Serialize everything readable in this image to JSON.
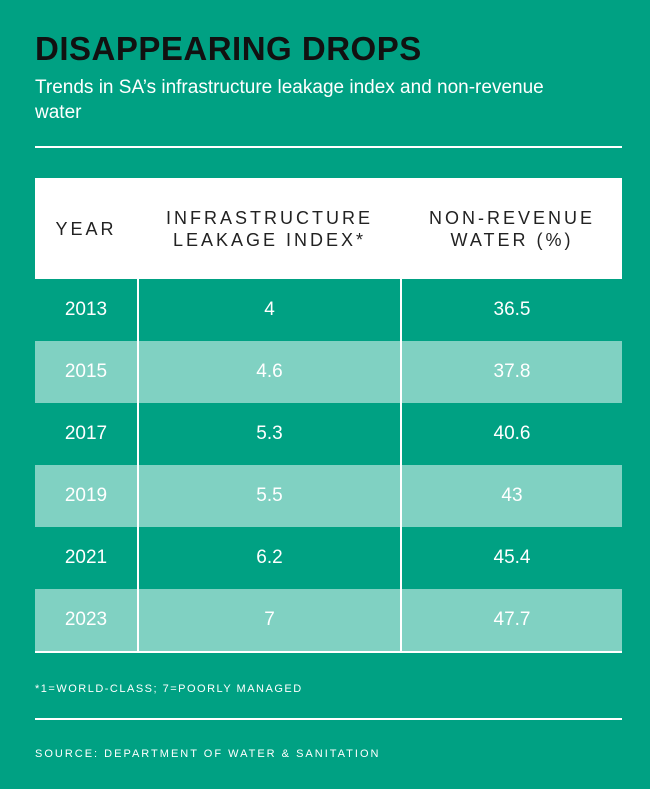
{
  "title": "DISAPPEARING DROPS",
  "subtitle": "Trends in SA’s infrastructure leakage index and non-revenue water",
  "footnote": "*1=WORLD-CLASS; 7=POORLY MANAGED",
  "source": "SOURCE: DEPARTMENT OF WATER & SANITATION",
  "colors": {
    "background": "#00a183",
    "alt_row": "#80d1c2",
    "title": "#111111"
  },
  "chart_data": {
    "type": "table",
    "columns": [
      "YEAR",
      "INFRASTRUCTURE LEAKAGE INDEX*",
      "NON-REVENUE WATER (%)"
    ],
    "rows": [
      [
        "2013",
        "4",
        "36.5"
      ],
      [
        "2015",
        "4.6",
        "37.8"
      ],
      [
        "2017",
        "5.3",
        "40.6"
      ],
      [
        "2019",
        "5.5",
        "43"
      ],
      [
        "2021",
        "6.2",
        "45.4"
      ],
      [
        "2023",
        "7",
        "47.7"
      ]
    ]
  }
}
